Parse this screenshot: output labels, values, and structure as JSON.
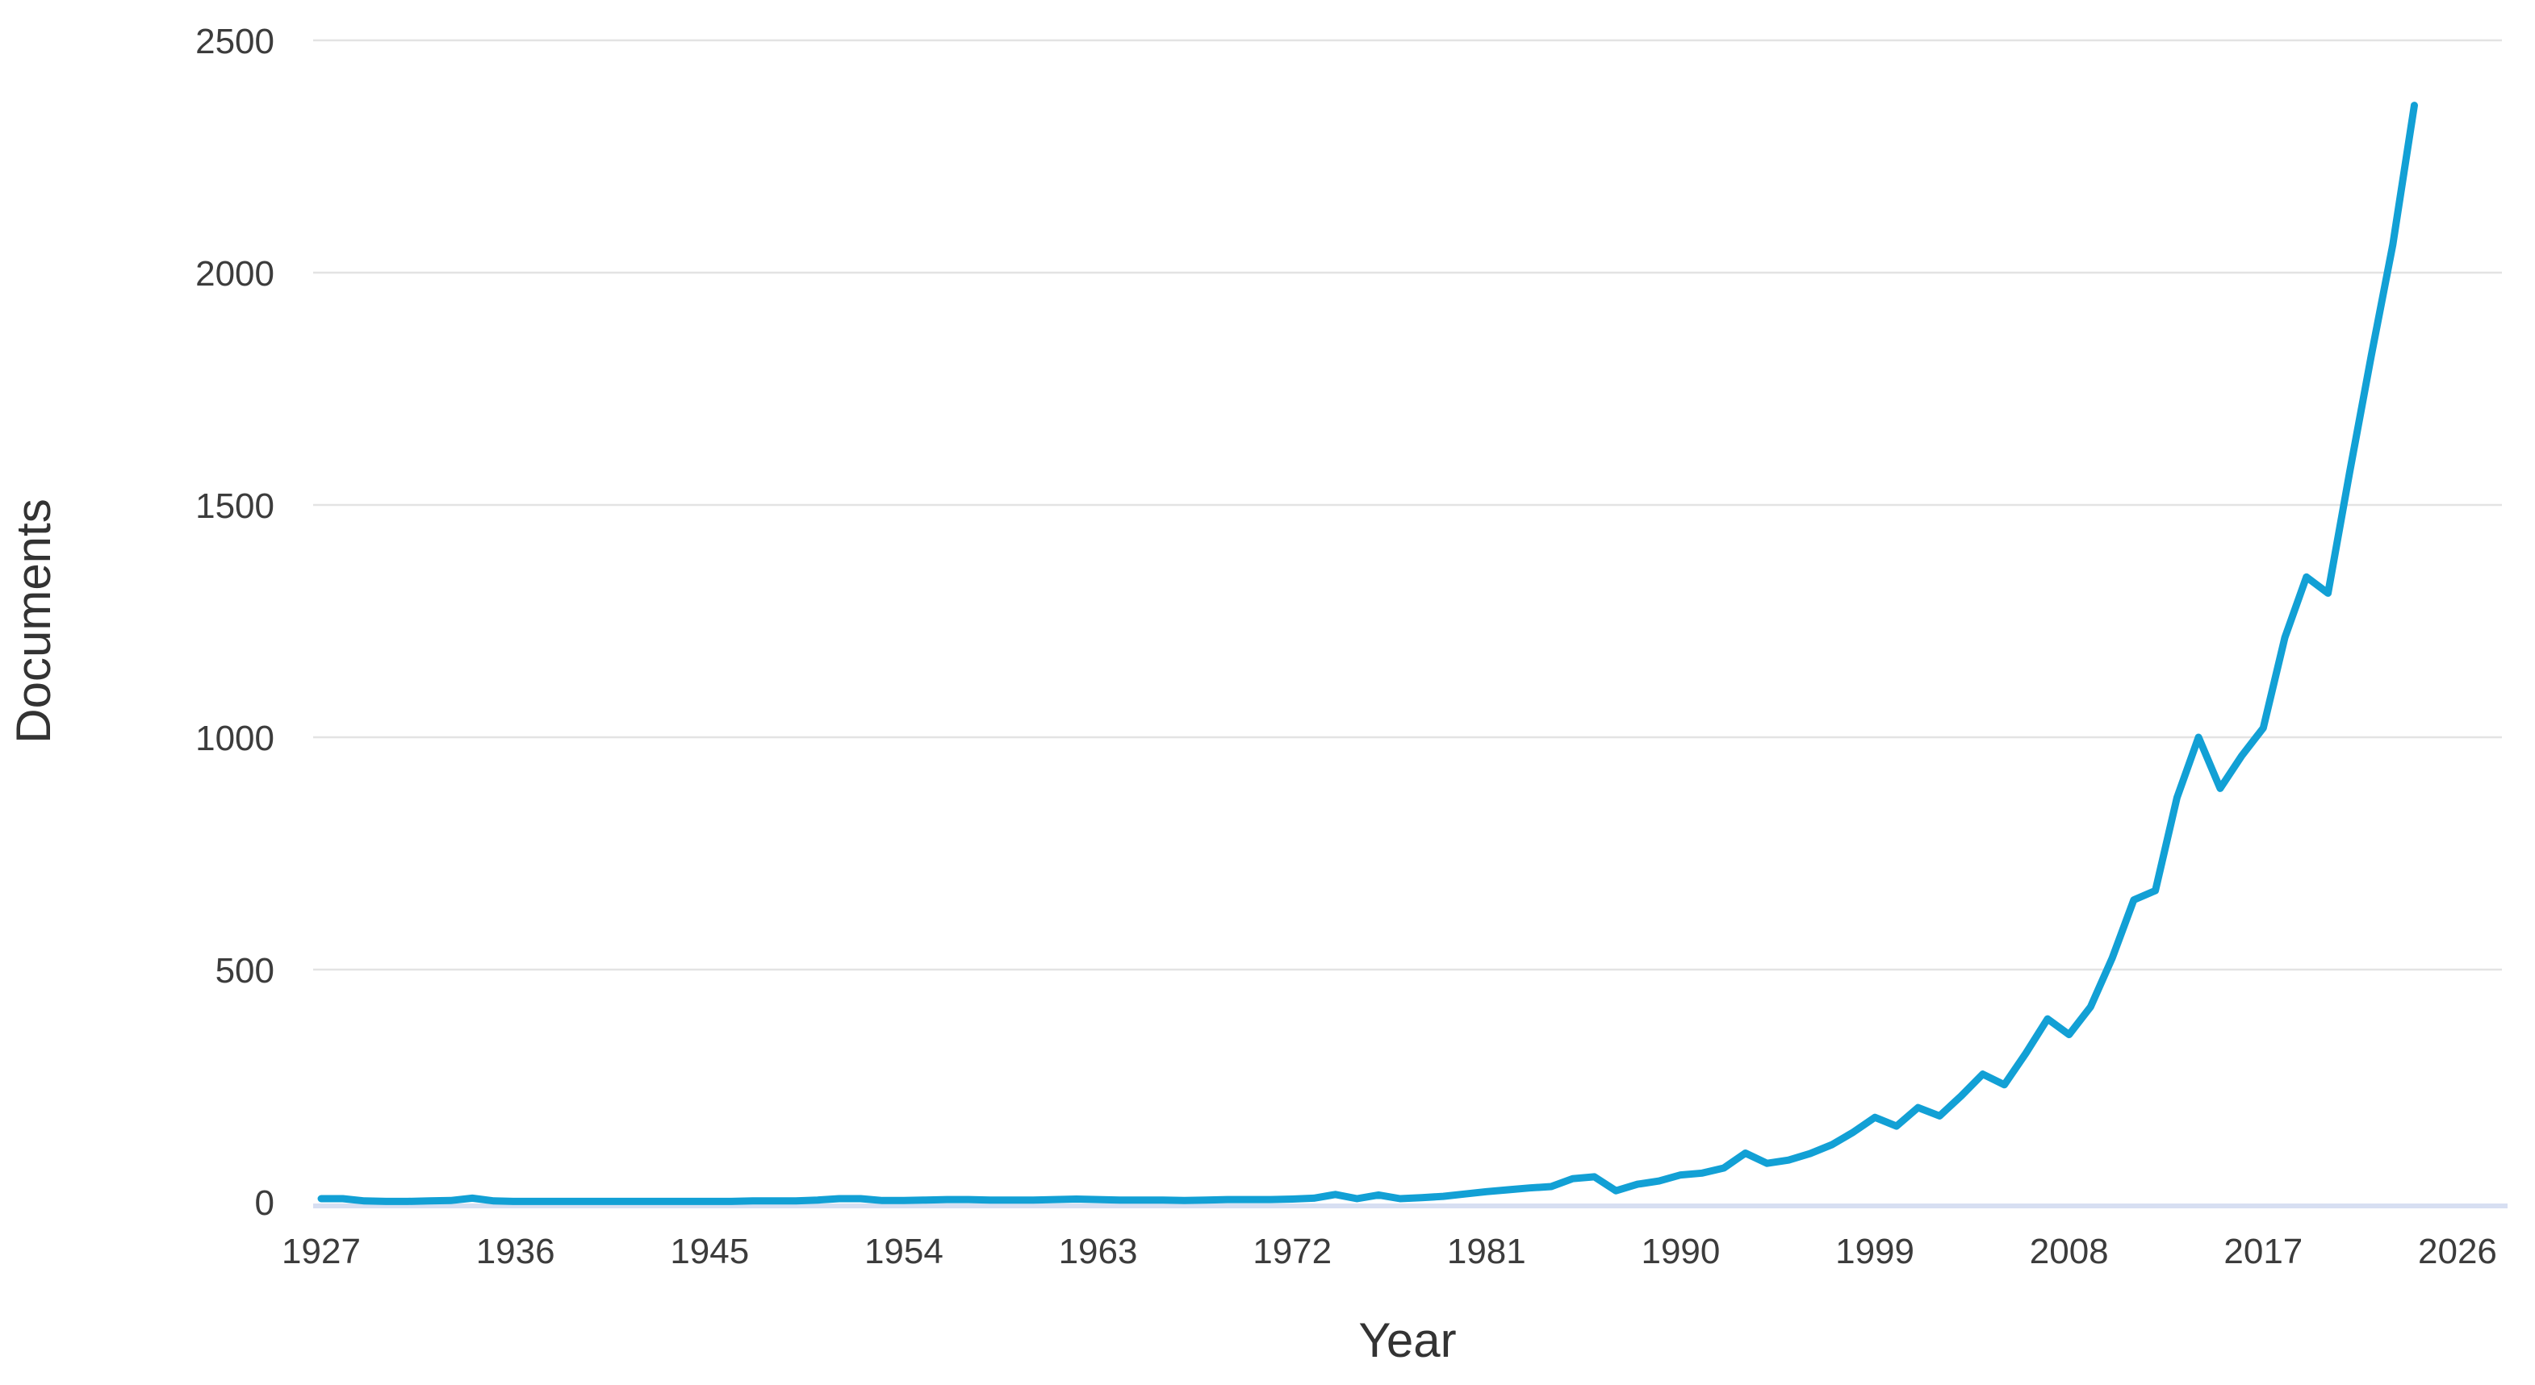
{
  "chart_data": {
    "type": "line",
    "title": "",
    "xlabel": "Year",
    "ylabel": "Documents",
    "x_ticks": [
      "1927",
      "1936",
      "1945",
      "1954",
      "1963",
      "1972",
      "1981",
      "1990",
      "1999",
      "2008",
      "2017",
      "2026"
    ],
    "y_ticks": [
      "0",
      "500",
      "1000",
      "1500",
      "2000",
      "2500"
    ],
    "xlim": [
      1926,
      2028
    ],
    "ylim": [
      0,
      2500
    ],
    "grid": "horizontal-only",
    "legend_position": "none",
    "series": [
      {
        "name": "Documents",
        "x": [
          1927,
          1928,
          1929,
          1930,
          1931,
          1932,
          1933,
          1934,
          1935,
          1936,
          1937,
          1938,
          1939,
          1940,
          1941,
          1942,
          1943,
          1944,
          1945,
          1946,
          1947,
          1948,
          1949,
          1950,
          1951,
          1952,
          1953,
          1954,
          1955,
          1956,
          1957,
          1958,
          1959,
          1960,
          1961,
          1962,
          1963,
          1964,
          1965,
          1966,
          1967,
          1968,
          1969,
          1970,
          1971,
          1972,
          1973,
          1974,
          1975,
          1976,
          1977,
          1978,
          1979,
          1980,
          1981,
          1982,
          1983,
          1984,
          1985,
          1986,
          1987,
          1988,
          1989,
          1990,
          1991,
          1992,
          1993,
          1994,
          1995,
          1996,
          1997,
          1998,
          1999,
          2000,
          2001,
          2002,
          2003,
          2004,
          2005,
          2006,
          2007,
          2008,
          2009,
          2010,
          2011,
          2012,
          2013,
          2014,
          2015,
          2016,
          2017,
          2018,
          2019,
          2020,
          2021,
          2022,
          2023,
          2024
        ],
        "y": [
          7,
          7,
          2,
          1,
          1,
          2,
          3,
          8,
          2,
          1,
          1,
          1,
          1,
          1,
          1,
          1,
          1,
          1,
          1,
          1,
          2,
          2,
          2,
          4,
          7,
          7,
          3,
          3,
          4,
          5,
          5,
          4,
          4,
          4,
          5,
          6,
          5,
          4,
          4,
          4,
          3,
          4,
          5,
          5,
          5,
          6,
          8,
          16,
          7,
          15,
          7,
          9,
          12,
          17,
          22,
          26,
          30,
          33,
          50,
          54,
          24,
          38,
          45,
          58,
          62,
          73,
          105,
          83,
          90,
          104,
          123,
          150,
          182,
          163,
          203,
          185,
          228,
          275,
          252,
          320,
          394,
          360,
          420,
          525,
          650,
          670,
          870,
          1000,
          890,
          960,
          1020,
          1215,
          1345,
          1310,
          1570,
          1820,
          2060,
          2360
        ]
      }
    ],
    "colors": {
      "line": "#12a0d5",
      "gridline": "#e3e3e3",
      "axis_baseline": "#d7dff2",
      "tick_text": "#3c3c3c",
      "axis_title_text": "#333333",
      "background": "#ffffff"
    }
  }
}
